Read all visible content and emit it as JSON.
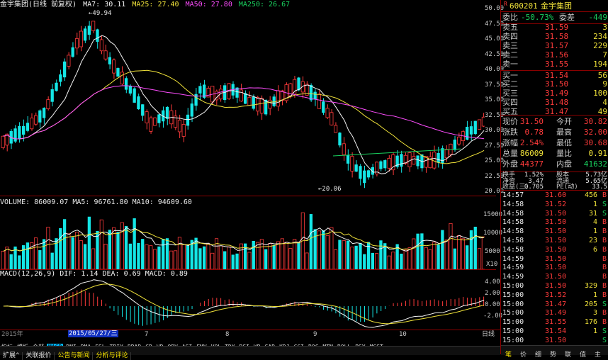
{
  "chart": {
    "title": "金宇集团(日线 前复权)",
    "ma_info": [
      {
        "label": "MA7: 30.11",
        "color": "#f5f5f5"
      },
      {
        "label": "MA25: 27.40",
        "color": "#f0e23a"
      },
      {
        "label": "MA50: 27.80",
        "color": "#ff4dff"
      },
      {
        "label": "MA250: 26.67",
        "color": "#19d35f"
      }
    ],
    "price_axis": [
      "50.00",
      "47.50",
      "45.00",
      "42.50",
      "40.00",
      "37.50",
      "35.00",
      "32.50",
      "30.00",
      "27.50",
      "25.00",
      "22.50",
      "20.00"
    ],
    "high_label": "49.94",
    "low_label": "20.06",
    "volume_info": "VOLUME: 86009.07  MA5: 96761.80  MA10: 94609.60",
    "volume_axis": [
      "15000",
      "10000",
      "5000",
      "X10"
    ],
    "macd_info": "MACD(12,26,9)  DIF: 1.14  DEA: 0.69  MACD: 0.89",
    "macd_axis": [
      "4.00",
      "2.00",
      "0.00",
      "-2.00"
    ],
    "date_axis": {
      "left": "2015年",
      "highlight": "2015/05/27/三",
      "ticks": [
        "7",
        "8",
        "9",
        "10"
      ],
      "right": "日线"
    },
    "indicator_tabs": [
      "指标",
      "模板",
      "全部",
      "MACD",
      "DMI",
      "DMA",
      "FSL",
      "TRIX",
      "BRAR",
      "CR",
      "VR",
      "OBV",
      "ASI",
      "EMV",
      "VOL-TDX",
      "RSI",
      "WR",
      "SAR",
      "KDJ",
      "CCI",
      "ROC",
      "MTM",
      "BOLL",
      "PSY",
      "MCST"
    ],
    "bottom_tabs": [
      "扩展^",
      "关联报价",
      "公告与新闻",
      "分析与评论"
    ]
  },
  "quote": {
    "code": "600201",
    "name": "金宇集团",
    "r_badge": "R",
    "weibi_label": "委比",
    "weibi_value": "-50.73%",
    "weicha_label": "委差",
    "weicha_value": "-449",
    "asks": [
      {
        "label": "卖五",
        "price": "31.59",
        "vol": "3"
      },
      {
        "label": "卖四",
        "price": "31.58",
        "vol": "234"
      },
      {
        "label": "卖三",
        "price": "31.57",
        "vol": "229"
      },
      {
        "label": "卖二",
        "price": "31.56",
        "vol": "7"
      },
      {
        "label": "卖一",
        "price": "31.55",
        "vol": "194"
      }
    ],
    "bids": [
      {
        "label": "买一",
        "price": "31.54",
        "vol": "56"
      },
      {
        "label": "买二",
        "price": "31.50",
        "vol": "9"
      },
      {
        "label": "买三",
        "price": "31.49",
        "vol": "100"
      },
      {
        "label": "买四",
        "price": "31.48",
        "vol": "4"
      },
      {
        "label": "买五",
        "price": "31.47",
        "vol": "49"
      }
    ],
    "stats": [
      {
        "l1": "现价",
        "v1": "31.50",
        "c1": "red",
        "l2": "今开",
        "v2": "30.82",
        "c2": "red"
      },
      {
        "l1": "涨跌",
        "v1": "0.78",
        "c1": "red",
        "l2": "最高",
        "v2": "32.00",
        "c2": "red"
      },
      {
        "l1": "涨幅",
        "v1": "2.54%",
        "c1": "red",
        "l2": "最低",
        "v2": "30.68",
        "c2": "red"
      },
      {
        "l1": "总量",
        "v1": "86009",
        "c1": "yellow",
        "l2": "量比",
        "v2": "0.91",
        "c2": "yellow"
      },
      {
        "l1": "外盘",
        "v1": "44377",
        "c1": "red",
        "l2": "内盘",
        "v2": "41632",
        "c2": "green"
      }
    ],
    "stats2": [
      {
        "l1": "换手",
        "v1": "1.52%",
        "l2": "股本",
        "v2": "5.73亿"
      },
      {
        "l1": "净资",
        "v1": "3.47",
        "l2": "流通",
        "v2": "5.65亿"
      },
      {
        "l1": "收益(三)",
        "v1": "0.705",
        "l2": "PE(动)",
        "v2": "33.5"
      }
    ],
    "ticks": [
      {
        "time": "14:57",
        "price": "31.60",
        "vol": "456",
        "side": "B"
      },
      {
        "time": "14:58",
        "price": "31.52",
        "vol": "1",
        "side": "S"
      },
      {
        "time": "14:58",
        "price": "31.50",
        "vol": "31",
        "side": "S"
      },
      {
        "time": "14:58",
        "price": "31.50",
        "vol": "4",
        "side": "B"
      },
      {
        "time": "14:58",
        "price": "31.50",
        "vol": "1",
        "side": "B"
      },
      {
        "time": "14:58",
        "price": "31.50",
        "vol": "23",
        "side": "B"
      },
      {
        "time": "14:58",
        "price": "31.50",
        "vol": "6",
        "side": "B"
      },
      {
        "time": "14:59",
        "price": "31.50",
        "vol": "",
        "side": "B"
      },
      {
        "time": "14:59",
        "price": "31.50",
        "vol": "",
        "side": "B"
      },
      {
        "time": "14:59",
        "price": "31.50",
        "vol": "",
        "side": "B"
      },
      {
        "time": "15:00",
        "price": "31.50",
        "vol": "329",
        "side": "B"
      },
      {
        "time": "15:00",
        "price": "31.52",
        "vol": "1",
        "side": "B"
      },
      {
        "time": "15:00",
        "price": "31.47",
        "vol": "205",
        "side": "S"
      },
      {
        "time": "15:00",
        "price": "31.49",
        "vol": "3",
        "side": "B"
      },
      {
        "time": "15:00",
        "price": "31.55",
        "vol": "176",
        "side": "B"
      },
      {
        "time": "15:00",
        "price": "31.54",
        "vol": "1",
        "side": "S"
      },
      {
        "time": "15:00",
        "price": "31.50",
        "vol": "",
        "side": "S"
      }
    ],
    "bottom_icons": [
      "笔",
      "价",
      "细",
      "势",
      "联",
      "值",
      "主"
    ]
  }
}
